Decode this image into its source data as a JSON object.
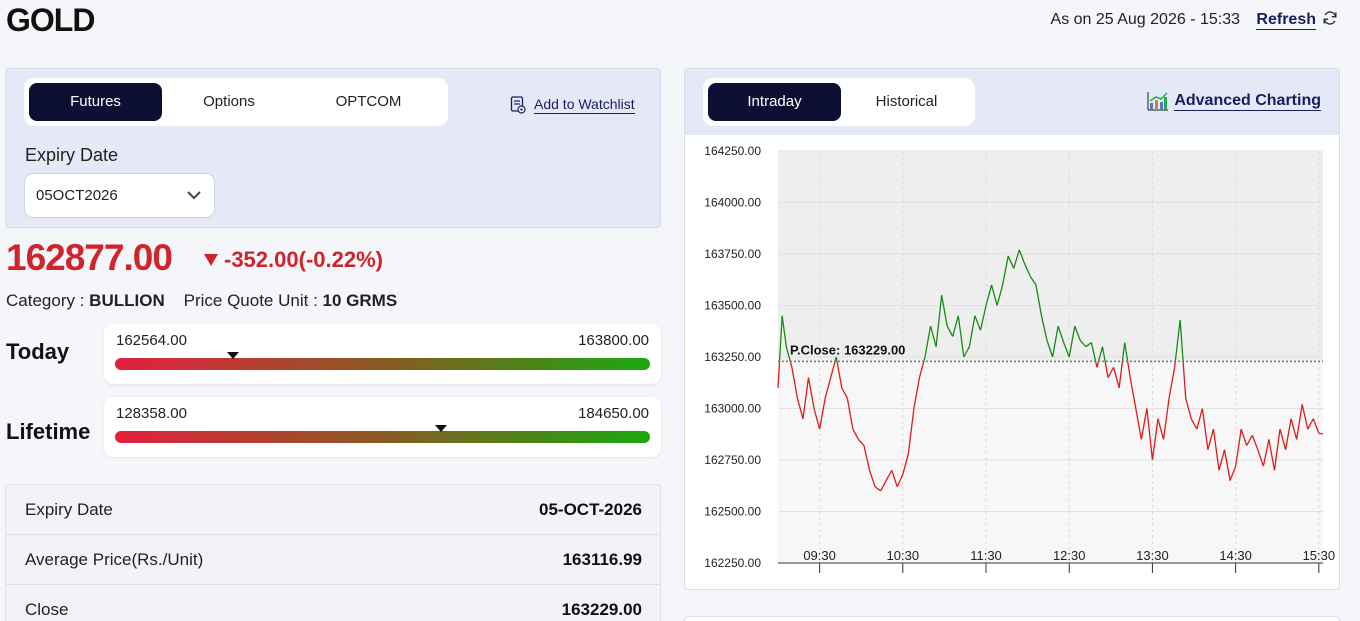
{
  "header": {
    "title": "GOLD",
    "as_on": "As on 25 Aug 2026 - 15:33",
    "refresh_label": "Refresh"
  },
  "contract_tabs": [
    {
      "label": "Futures",
      "active": true
    },
    {
      "label": "Options",
      "active": false
    },
    {
      "label": "OPTCOM",
      "active": false
    }
  ],
  "watchlist_label": "Add to Watchlist",
  "expiry": {
    "label": "Expiry Date",
    "selected": "05OCT2026"
  },
  "quote": {
    "price": "162877.00",
    "change": "-352.00(-0.22%)",
    "category_label": "Category :",
    "category_value": "BULLION",
    "unit_label": "Price Quote Unit :",
    "unit_value": "10 GRMS"
  },
  "ranges": [
    {
      "label": "Today",
      "low": "162564.00",
      "high": "163800.00",
      "position": 0.22
    },
    {
      "label": "Lifetime",
      "low": "128358.00",
      "high": "184650.00",
      "position": 0.61
    }
  ],
  "details": [
    {
      "key": "Expiry Date",
      "value": "05-OCT-2026"
    },
    {
      "key": "Average Price(Rs./Unit)",
      "value": "163116.99"
    },
    {
      "key": "Close",
      "value": "163229.00"
    }
  ],
  "chart_tabs": [
    {
      "label": "Intraday",
      "active": true
    },
    {
      "label": "Historical",
      "active": false
    }
  ],
  "advanced_charting_label": "Advanced Charting",
  "colors": {
    "up": "#1a8a12",
    "down": "#e01b1b",
    "accent": "#0d1033",
    "price_down": "#d1232a"
  },
  "chart_data": {
    "type": "line",
    "ylim": [
      162250,
      164250
    ],
    "y_ticks": [
      "164250.00",
      "164000.00",
      "163750.00",
      "163500.00",
      "163250.00",
      "163000.00",
      "162750.00",
      "162500.00",
      "162250.00"
    ],
    "x_ticks": [
      "09:30",
      "10:30",
      "11:30",
      "12:30",
      "13:30",
      "14:30",
      "15:30"
    ],
    "reference": {
      "label": "P.Close: 163229.00",
      "value": 163229
    },
    "x_range": [
      "09:00",
      "15:33"
    ],
    "points": [
      [
        "09:00",
        163100
      ],
      [
        "09:03",
        163450
      ],
      [
        "09:06",
        163300
      ],
      [
        "09:10",
        163200
      ],
      [
        "09:14",
        163050
      ],
      [
        "09:18",
        162950
      ],
      [
        "09:22",
        163150
      ],
      [
        "09:26",
        163000
      ],
      [
        "09:30",
        162900
      ],
      [
        "09:34",
        163050
      ],
      [
        "09:38",
        163150
      ],
      [
        "09:42",
        163250
      ],
      [
        "09:46",
        163100
      ],
      [
        "09:50",
        163050
      ],
      [
        "09:54",
        162900
      ],
      [
        "09:58",
        162850
      ],
      [
        "10:02",
        162820
      ],
      [
        "10:06",
        162700
      ],
      [
        "10:10",
        162620
      ],
      [
        "10:14",
        162600
      ],
      [
        "10:18",
        162650
      ],
      [
        "10:22",
        162700
      ],
      [
        "10:26",
        162620
      ],
      [
        "10:30",
        162680
      ],
      [
        "10:34",
        162780
      ],
      [
        "10:38",
        163000
      ],
      [
        "10:42",
        163150
      ],
      [
        "10:46",
        163250
      ],
      [
        "10:50",
        163400
      ],
      [
        "10:54",
        163300
      ],
      [
        "10:58",
        163550
      ],
      [
        "11:02",
        163400
      ],
      [
        "11:06",
        163350
      ],
      [
        "11:10",
        163450
      ],
      [
        "11:14",
        163250
      ],
      [
        "11:18",
        163300
      ],
      [
        "11:22",
        163450
      ],
      [
        "11:26",
        163380
      ],
      [
        "11:30",
        163500
      ],
      [
        "11:34",
        163600
      ],
      [
        "11:38",
        163500
      ],
      [
        "11:42",
        163600
      ],
      [
        "11:46",
        163740
      ],
      [
        "11:50",
        163680
      ],
      [
        "11:54",
        163770
      ],
      [
        "11:58",
        163700
      ],
      [
        "12:02",
        163640
      ],
      [
        "12:06",
        163600
      ],
      [
        "12:10",
        163450
      ],
      [
        "12:14",
        163330
      ],
      [
        "12:18",
        163250
      ],
      [
        "12:22",
        163400
      ],
      [
        "12:26",
        163320
      ],
      [
        "12:30",
        163250
      ],
      [
        "12:34",
        163400
      ],
      [
        "12:38",
        163330
      ],
      [
        "12:42",
        163300
      ],
      [
        "12:46",
        163320
      ],
      [
        "12:50",
        163200
      ],
      [
        "12:54",
        163300
      ],
      [
        "12:58",
        163150
      ],
      [
        "13:02",
        163200
      ],
      [
        "13:06",
        163100
      ],
      [
        "13:10",
        163320
      ],
      [
        "13:14",
        163150
      ],
      [
        "13:18",
        163000
      ],
      [
        "13:22",
        162850
      ],
      [
        "13:26",
        163000
      ],
      [
        "13:30",
        162750
      ],
      [
        "13:34",
        162950
      ],
      [
        "13:38",
        162850
      ],
      [
        "13:42",
        163050
      ],
      [
        "13:46",
        163200
      ],
      [
        "13:50",
        163430
      ],
      [
        "13:54",
        163050
      ],
      [
        "13:58",
        162950
      ],
      [
        "14:02",
        162900
      ],
      [
        "14:06",
        163000
      ],
      [
        "14:10",
        162800
      ],
      [
        "14:14",
        162900
      ],
      [
        "14:18",
        162700
      ],
      [
        "14:22",
        162800
      ],
      [
        "14:26",
        162650
      ],
      [
        "14:30",
        162720
      ],
      [
        "14:34",
        162900
      ],
      [
        "14:38",
        162820
      ],
      [
        "14:42",
        162870
      ],
      [
        "14:46",
        162800
      ],
      [
        "14:50",
        162720
      ],
      [
        "14:54",
        162850
      ],
      [
        "14:58",
        162700
      ],
      [
        "15:02",
        162900
      ],
      [
        "15:06",
        162800
      ],
      [
        "15:10",
        162950
      ],
      [
        "15:14",
        162850
      ],
      [
        "15:18",
        163020
      ],
      [
        "15:22",
        162900
      ],
      [
        "15:26",
        162950
      ],
      [
        "15:30",
        162880
      ],
      [
        "15:33",
        162877
      ]
    ]
  }
}
